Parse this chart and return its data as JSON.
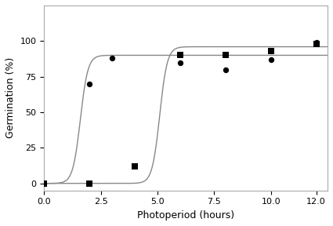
{
  "circles_x": [
    0,
    2,
    3,
    6,
    8,
    10,
    12
  ],
  "circles_y": [
    0,
    70,
    88,
    85,
    80,
    87,
    99
  ],
  "squares_x": [
    0,
    2,
    4,
    6,
    8,
    10,
    12
  ],
  "squares_y": [
    0,
    0,
    12,
    90,
    90,
    93,
    98
  ],
  "curve1_midpoint": 1.6,
  "curve1_k": 6.0,
  "curve1_max": 90,
  "curve2_midpoint": 5.1,
  "curve2_k": 6.0,
  "curve2_max": 96,
  "xlabel": "Photoperiod (hours)",
  "ylabel": "Germination (%)",
  "xlim": [
    0,
    12.5
  ],
  "ylim": [
    -5,
    125
  ],
  "xticks": [
    0,
    2.5,
    5,
    7.5,
    10,
    12
  ],
  "yticks": [
    0,
    25,
    50,
    75,
    100
  ],
  "line_color": "#888888",
  "marker_color": "#000000",
  "background_color": "#ffffff",
  "label_fontsize": 9,
  "tick_fontsize": 8,
  "figsize": [
    4.25,
    2.88
  ],
  "dpi": 100
}
